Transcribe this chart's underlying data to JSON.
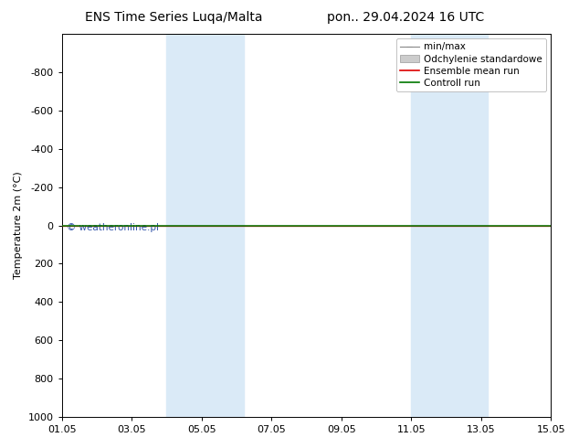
{
  "title_left": "ENS Time Series Luqa/Malta",
  "title_right": "pon.. 29.04.2024 16 UTC",
  "ylabel": "Temperature 2m (°C)",
  "ylim": [
    -1000,
    1000
  ],
  "yticks": [
    -800,
    -600,
    -400,
    -200,
    0,
    200,
    400,
    600,
    800,
    1000
  ],
  "xtick_labels": [
    "01.05",
    "03.05",
    "05.05",
    "07.05",
    "09.05",
    "11.05",
    "13.05",
    "15.05"
  ],
  "xtick_positions": [
    0,
    2,
    4,
    6,
    8,
    10,
    12,
    14
  ],
  "shade_bands": [
    {
      "xmin": 3.0,
      "xmax": 5.2
    },
    {
      "xmin": 10.0,
      "xmax": 12.2
    }
  ],
  "shade_color": "#daeaf7",
  "horizontal_line_y": 0,
  "ensemble_mean_color": "#dd0000",
  "control_run_color": "#007700",
  "watermark_text": "© weatheronline.pl",
  "watermark_color": "#3355aa",
  "background_color": "#ffffff",
  "title_fontsize": 10,
  "axis_label_fontsize": 8,
  "tick_fontsize": 8,
  "legend_fontsize": 7.5
}
